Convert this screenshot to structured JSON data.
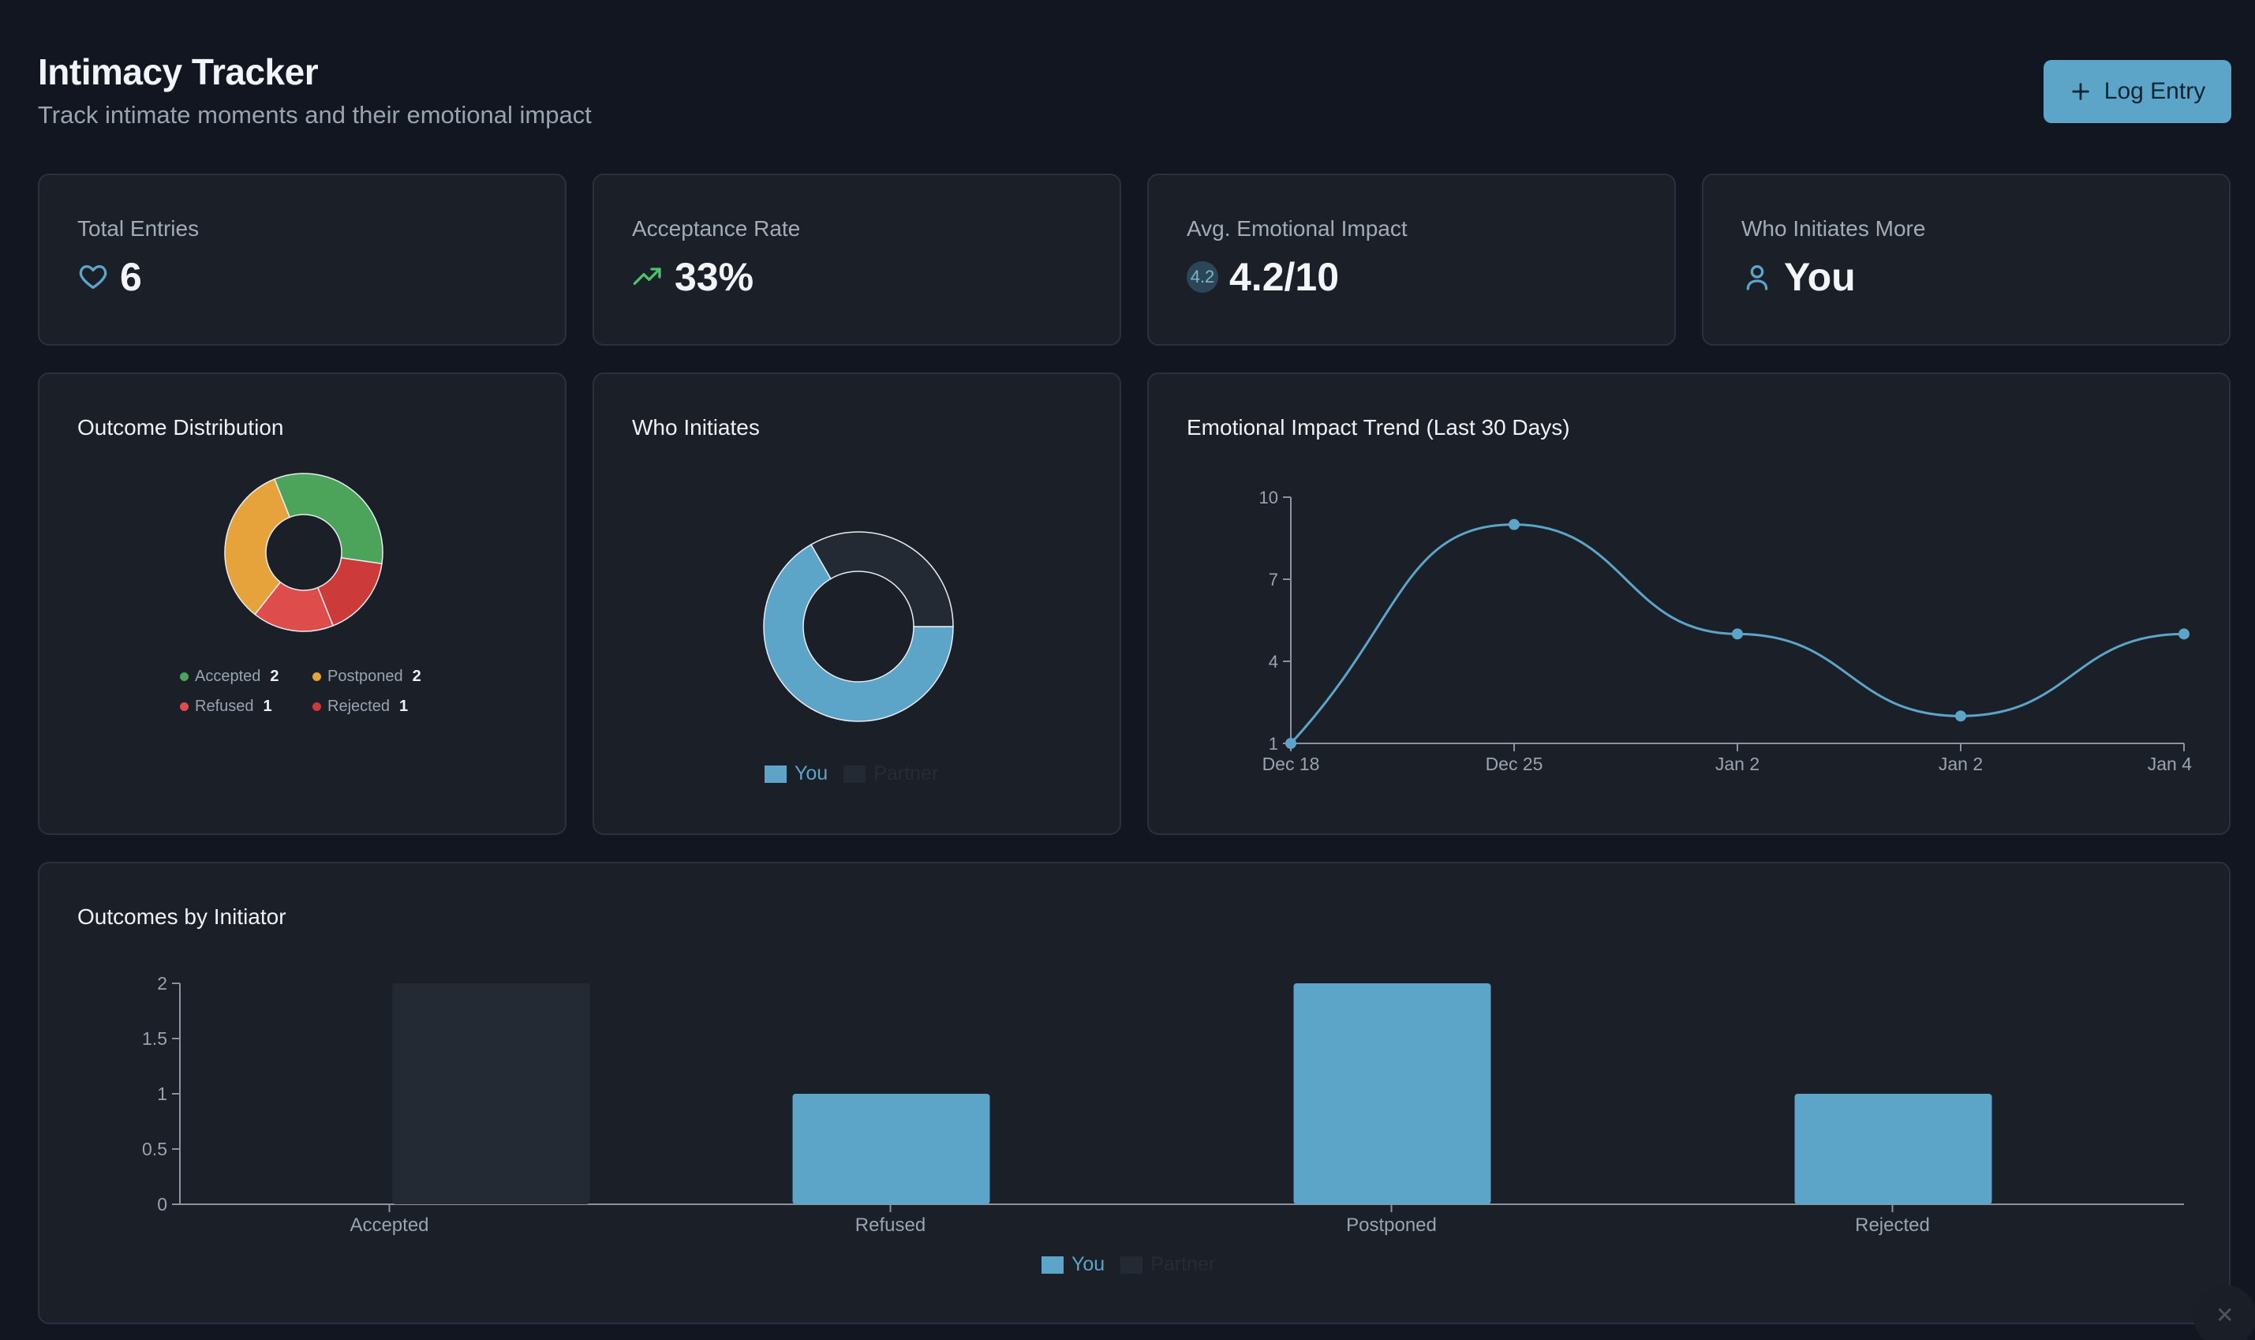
{
  "header": {
    "title": "Intimacy Tracker",
    "subtitle": "Track intimate moments and their emotional impact",
    "log_button": "Log Entry"
  },
  "stats": {
    "total_entries": {
      "label": "Total Entries",
      "value": "6",
      "icon": "heart-icon"
    },
    "acceptance_rate": {
      "label": "Acceptance Rate",
      "value": "33%",
      "icon": "trending-up-icon"
    },
    "avg_impact": {
      "label": "Avg. Emotional Impact",
      "value": "4.2/10",
      "badge": "4.2"
    },
    "who_initiates": {
      "label": "Who Initiates More",
      "value": "You",
      "icon": "user-icon"
    }
  },
  "colors": {
    "accent": "#5ca5c8",
    "accepted": "#4ca35a",
    "postponed": "#e7a33b",
    "refused": "#de4c4c",
    "rejected": "#cc3a3a",
    "partner": "#242a33"
  },
  "outcome_panel": {
    "title": "Outcome Distribution",
    "legend": [
      {
        "label": "Accepted",
        "count": "2"
      },
      {
        "label": "Postponed",
        "count": "2"
      },
      {
        "label": "Refused",
        "count": "1"
      },
      {
        "label": "Rejected",
        "count": "1"
      }
    ]
  },
  "initiates_panel": {
    "title": "Who Initiates",
    "legend_you": "You",
    "legend_partner": "Partner"
  },
  "trend_panel": {
    "title": "Emotional Impact Trend (Last 30 Days)"
  },
  "initiator_panel": {
    "title": "Outcomes by Initiator",
    "legend_you": "You",
    "legend_partner": "Partner"
  },
  "chart_data": [
    {
      "type": "pie",
      "title": "Outcome Distribution",
      "categories": [
        "Accepted",
        "Rejected",
        "Refused",
        "Postponed"
      ],
      "values": [
        2,
        1,
        1,
        2
      ]
    },
    {
      "type": "pie",
      "title": "Who Initiates",
      "categories": [
        "You",
        "Partner"
      ],
      "values": [
        4,
        2
      ]
    },
    {
      "type": "line",
      "title": "Emotional Impact Trend (Last 30 Days)",
      "x": [
        "Dec 18",
        "Dec 25",
        "Jan 2",
        "Jan 2",
        "Jan 4"
      ],
      "values": [
        1,
        9,
        5,
        2,
        5
      ],
      "yticks": [
        "1",
        "4",
        "7",
        "10"
      ],
      "ylim": [
        1,
        10
      ]
    },
    {
      "type": "bar",
      "title": "Outcomes by Initiator",
      "categories": [
        "Accepted",
        "Refused",
        "Postponed",
        "Rejected"
      ],
      "series": [
        {
          "name": "You",
          "values": [
            0,
            1,
            2,
            1
          ]
        },
        {
          "name": "Partner",
          "values": [
            2,
            0,
            0,
            0
          ]
        }
      ],
      "yticks": [
        "0",
        "0.5",
        "1",
        "1.5",
        "2"
      ],
      "ylim": [
        0,
        2
      ]
    }
  ]
}
